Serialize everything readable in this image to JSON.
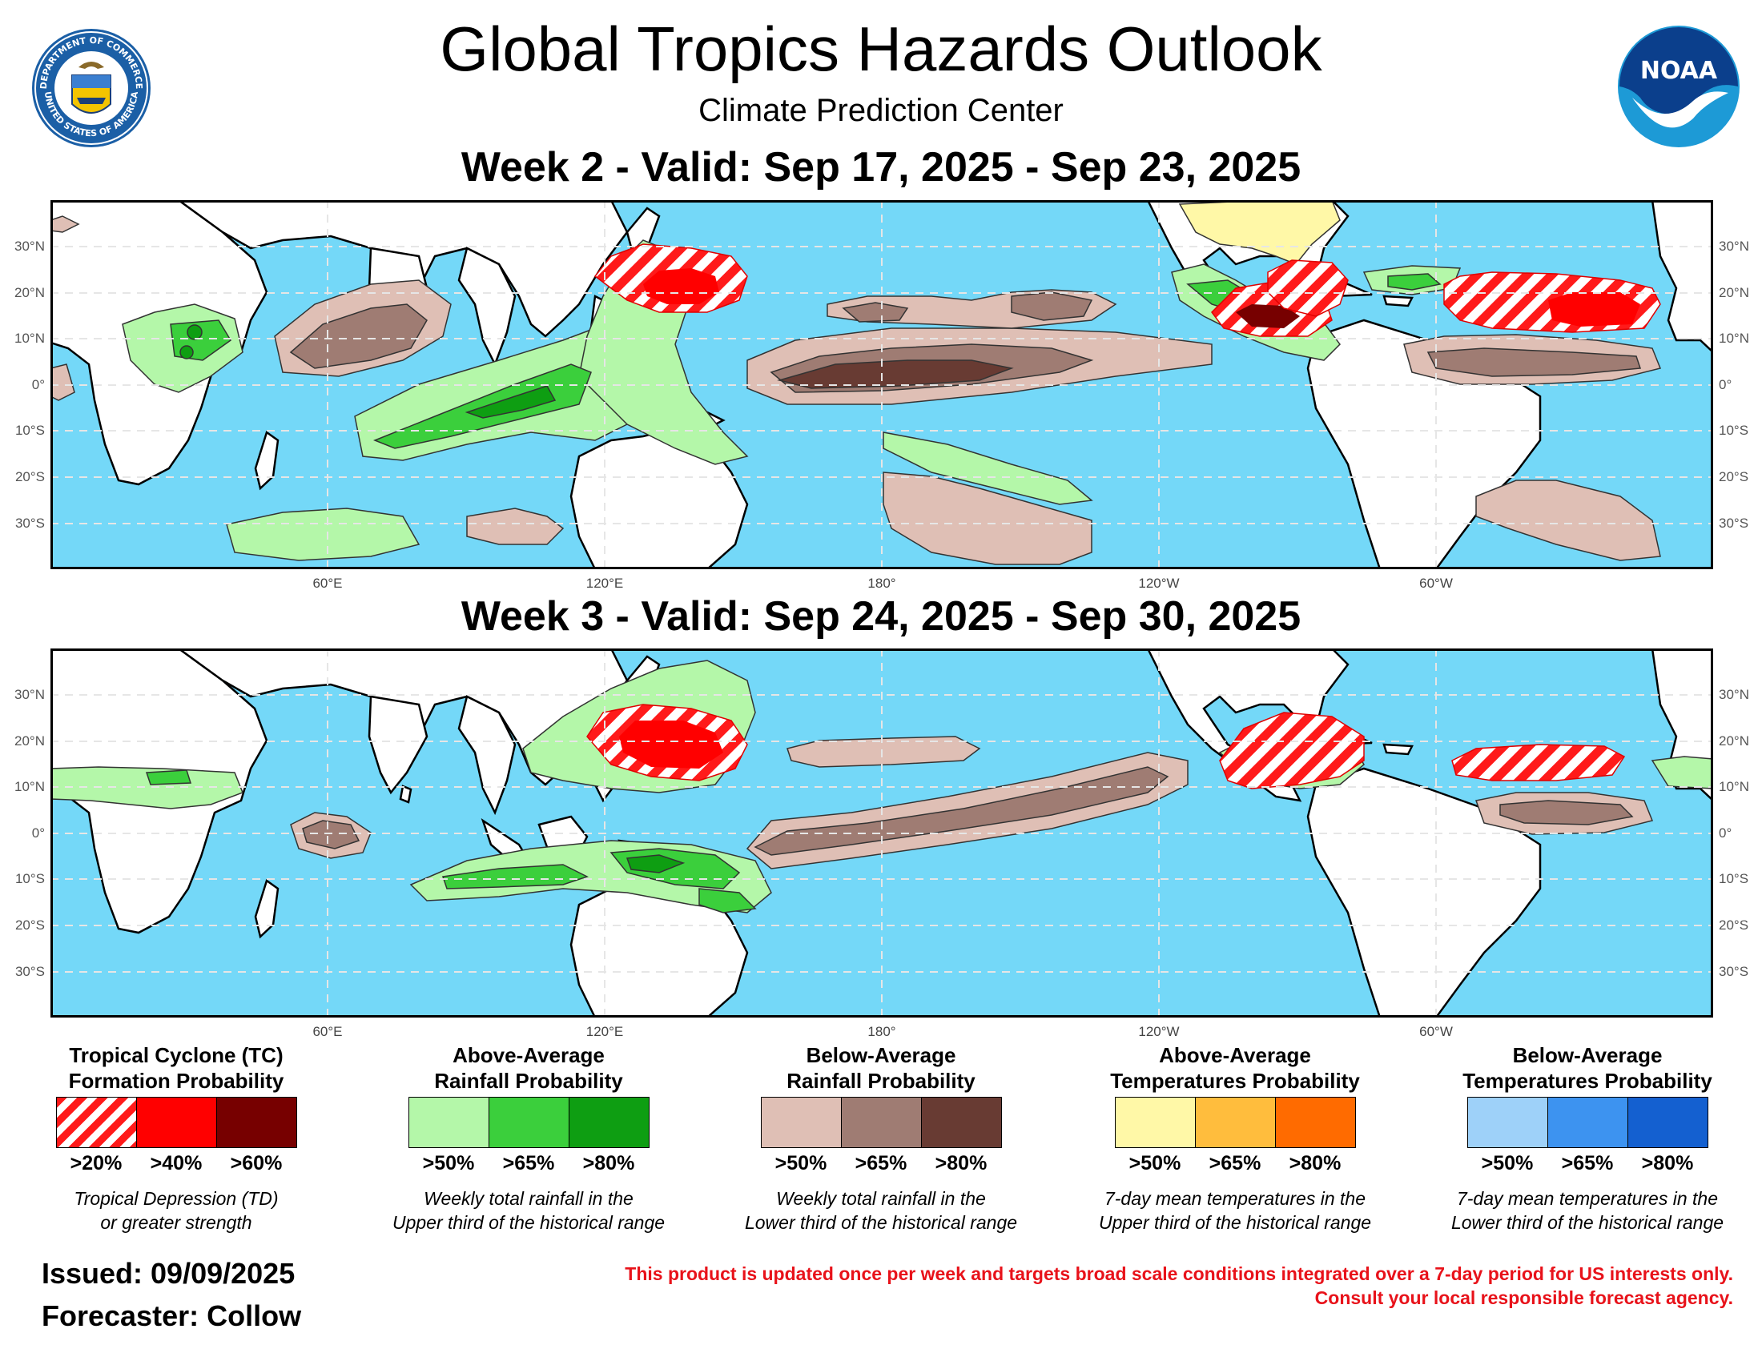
{
  "header": {
    "title": "Global Tropics Hazards Outlook",
    "subtitle": "Climate Prediction Center",
    "left_logo_text": [
      "DEPARTMENT OF COMMERCE",
      "UNITED STATES OF AMERICA"
    ],
    "right_logo_text": "NOAA"
  },
  "week2": {
    "title": "Week 2 - Valid: Sep 17, 2025 - Sep 23, 2025"
  },
  "week3": {
    "title": "Week 3 - Valid: Sep 24, 2025 - Sep 30, 2025"
  },
  "map": {
    "lat_labels": [
      "30°N",
      "20°N",
      "10°N",
      "0°",
      "10°S",
      "20°S",
      "30°S"
    ],
    "lon_labels": [
      "60°E",
      "120°E",
      "180°",
      "120°W",
      "60°W"
    ],
    "colors": {
      "ocean": "#74d8f8",
      "land": "#ffffff",
      "grid": "#e6e6e6"
    }
  },
  "legend": [
    {
      "title_line1": "Tropical Cyclone (TC)",
      "title_line2": "Formation Probability",
      "thresholds": [
        ">20%",
        ">40%",
        ">60%"
      ],
      "colors": [
        "hatch-red",
        "#ff0000",
        "#770000"
      ],
      "desc_line1": "Tropical Depression (TD)",
      "desc_line2": "or greater strength"
    },
    {
      "title_line1": "Above-Average",
      "title_line2": "Rainfall Probability",
      "thresholds": [
        ">50%",
        ">65%",
        ">80%"
      ],
      "colors": [
        "#b4f7a9",
        "#3bcf3c",
        "#0e9e12"
      ],
      "desc_line1": "Weekly total rainfall in the",
      "desc_line2": "Upper third of the historical range"
    },
    {
      "title_line1": "Below-Average",
      "title_line2": "Rainfall Probability",
      "thresholds": [
        ">50%",
        ">65%",
        ">80%"
      ],
      "colors": [
        "#dfbfb5",
        "#9f7c73",
        "#683b33"
      ],
      "desc_line1": "Weekly total rainfall in the",
      "desc_line2": "Lower third of the historical range"
    },
    {
      "title_line1": "Above-Average",
      "title_line2": "Temperatures Probability",
      "thresholds": [
        ">50%",
        ">65%",
        ">80%"
      ],
      "colors": [
        "#fff8a7",
        "#ffbd3d",
        "#ff6b00"
      ],
      "desc_line1": "7-day mean temperatures in the",
      "desc_line2": "Upper third of the historical range"
    },
    {
      "title_line1": "Below-Average",
      "title_line2": "Temperatures Probability",
      "thresholds": [
        ">50%",
        ">65%",
        ">80%"
      ],
      "colors": [
        "#9ed1f9",
        "#3d93f0",
        "#1460d0"
      ],
      "desc_line1": "7-day mean temperatures in the",
      "desc_line2": "Lower third of the historical range"
    }
  ],
  "footer": {
    "issued": "Issued: 09/09/2025",
    "forecaster": "Forecaster: Collow",
    "disclaimer_line1": "This product is updated once per week and targets broad scale conditions integrated over a 7-day period for US interests only.",
    "disclaimer_line2": "Consult your local responsible forecast agency."
  }
}
